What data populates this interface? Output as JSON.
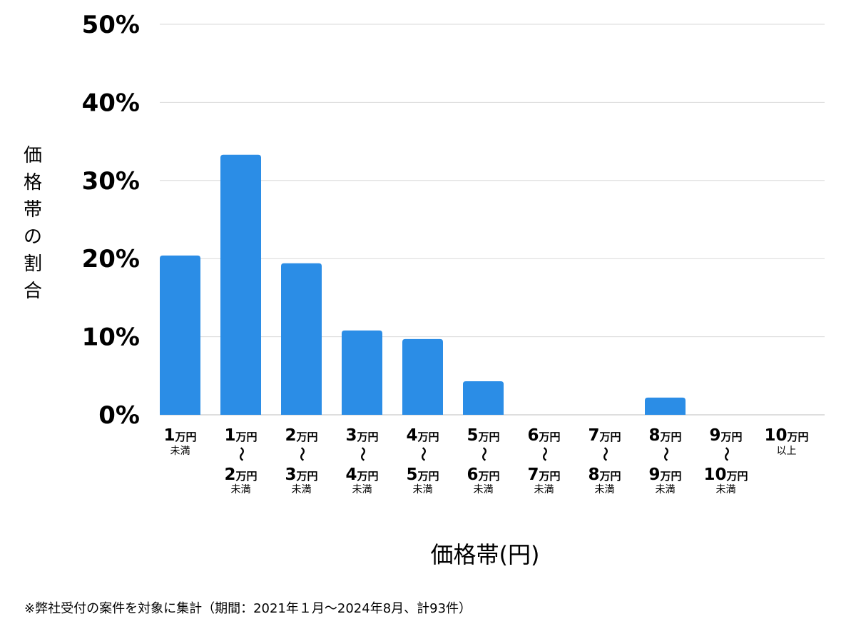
{
  "chart_data": {
    "type": "bar",
    "ylabel": "価格帯の割合",
    "xlabel": "価格帯(円)",
    "ylim": [
      0,
      50
    ],
    "grid": true,
    "y_ticks": [
      "0%",
      "10%",
      "20%",
      "30%",
      "40%",
      "50%"
    ],
    "y_tick_values": [
      0,
      10,
      20,
      30,
      40,
      50
    ],
    "bar_color": "#2b8de6",
    "grid_color": "#d9d9d9",
    "categories": [
      {
        "label": "1万円未満",
        "low": "1",
        "low_unit": "万円",
        "sep": "",
        "high": "",
        "high_unit": "",
        "note": "未満"
      },
      {
        "label": "1万円〜2万円未満",
        "low": "1",
        "low_unit": "万円",
        "sep": "〜",
        "high": "2",
        "high_unit": "万円",
        "note": "未満"
      },
      {
        "label": "2万円〜3万円未満",
        "low": "2",
        "low_unit": "万円",
        "sep": "〜",
        "high": "3",
        "high_unit": "万円",
        "note": "未満"
      },
      {
        "label": "3万円〜4万円未満",
        "low": "3",
        "low_unit": "万円",
        "sep": "〜",
        "high": "4",
        "high_unit": "万円",
        "note": "未満"
      },
      {
        "label": "4万円〜5万円未満",
        "low": "4",
        "low_unit": "万円",
        "sep": "〜",
        "high": "5",
        "high_unit": "万円",
        "note": "未満"
      },
      {
        "label": "5万円〜6万円未満",
        "low": "5",
        "low_unit": "万円",
        "sep": "〜",
        "high": "6",
        "high_unit": "万円",
        "note": "未満"
      },
      {
        "label": "6万円〜7万円未満",
        "low": "6",
        "low_unit": "万円",
        "sep": "〜",
        "high": "7",
        "high_unit": "万円",
        "note": "未満"
      },
      {
        "label": "7万円〜8万円未満",
        "low": "7",
        "low_unit": "万円",
        "sep": "〜",
        "high": "8",
        "high_unit": "万円",
        "note": "未満"
      },
      {
        "label": "8万円〜9万円未満",
        "low": "8",
        "low_unit": "万円",
        "sep": "〜",
        "high": "9",
        "high_unit": "万円",
        "note": "未満"
      },
      {
        "label": "9万円〜10万円未満",
        "low": "9",
        "low_unit": "万円",
        "sep": "〜",
        "high": "10",
        "high_unit": "万円",
        "note": "未満"
      },
      {
        "label": "10万円以上",
        "low": "10",
        "low_unit": "万円",
        "sep": "",
        "high": "",
        "high_unit": "",
        "note": "以上"
      }
    ],
    "values": [
      20.4,
      33.3,
      19.4,
      10.8,
      9.7,
      4.3,
      0,
      0,
      2.2,
      0,
      0
    ]
  },
  "footnote": "※弊社受付の案件を対象に集計（期間：2021年１月〜2024年8月、計93件）"
}
